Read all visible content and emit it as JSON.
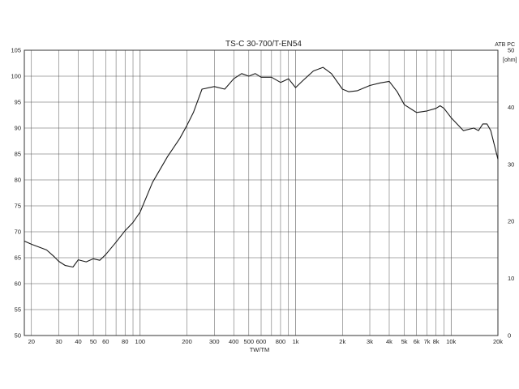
{
  "chart_data": {
    "type": "line",
    "title": "TS-C 30-700/T-EN54",
    "corner_label": "ATB PC",
    "xlabel": "TW/TM",
    "ylabel": "",
    "y2label": "[ohm]",
    "x_scale": "log",
    "xlim": [
      18,
      20000
    ],
    "ylim": [
      50,
      105
    ],
    "y2lim": [
      0,
      50
    ],
    "grid": true,
    "x_ticks": [
      20,
      30,
      40,
      50,
      60,
      80,
      100,
      200,
      300,
      400,
      500,
      600,
      800,
      1000,
      2000,
      3000,
      4000,
      5000,
      6000,
      7000,
      8000,
      10000,
      20000
    ],
    "x_tick_labels": [
      "20",
      "30",
      "40",
      "50",
      "60",
      "80",
      "100",
      "200",
      "300",
      "400",
      "500",
      "600",
      "800",
      "1k",
      "2k",
      "3k",
      "4k",
      "5k",
      "6k",
      "7k",
      "8k",
      "10k",
      "20k"
    ],
    "y_ticks": [
      50,
      55,
      60,
      65,
      70,
      75,
      80,
      85,
      90,
      95,
      100,
      105
    ],
    "y_tick_labels": [
      "50",
      "55",
      "60",
      "65",
      "70",
      "75",
      "80",
      "85",
      "90",
      "95",
      "100",
      "105"
    ],
    "y2_ticks": [
      0,
      10,
      20,
      30,
      40,
      50
    ],
    "y2_tick_labels": [
      "0",
      "10",
      "20",
      "30",
      "40",
      "50"
    ],
    "series": [
      {
        "x": [
          18,
          20,
          25,
          28,
          30,
          33,
          37,
          40,
          45,
          50,
          55,
          60,
          70,
          80,
          90,
          100,
          120,
          150,
          180,
          200,
          220,
          250,
          300,
          350,
          400,
          450,
          500,
          550,
          600,
          700,
          800,
          900,
          1000,
          1100,
          1300,
          1500,
          1700,
          2000,
          2200,
          2500,
          3000,
          3500,
          4000,
          4500,
          5000,
          6000,
          7000,
          8000,
          8500,
          9000,
          10000,
          12000,
          14000,
          15000,
          16000,
          17000,
          18000,
          20000
        ],
        "y": [
          68.2,
          67.6,
          66.5,
          65.2,
          64.3,
          63.5,
          63.2,
          64.6,
          64.2,
          64.8,
          64.5,
          65.6,
          68.0,
          70.2,
          71.8,
          73.8,
          79.5,
          84.5,
          88.0,
          90.5,
          93.0,
          97.5,
          98.0,
          97.5,
          99.5,
          100.5,
          100.0,
          100.5,
          99.8,
          99.8,
          98.8,
          99.5,
          97.8,
          99.0,
          101.0,
          101.7,
          100.5,
          97.5,
          97.0,
          97.2,
          98.2,
          98.7,
          99.0,
          97.0,
          94.5,
          93.0,
          93.3,
          93.8,
          94.3,
          93.8,
          92.0,
          89.5,
          90.0,
          89.5,
          90.8,
          90.8,
          89.5,
          84.0
        ]
      }
    ]
  }
}
